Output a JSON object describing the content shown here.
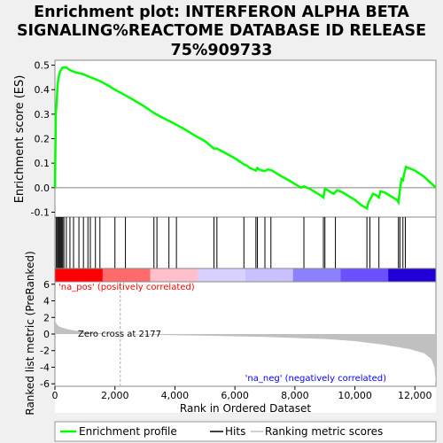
{
  "chart_data": {
    "type": "line",
    "title_lines": [
      "Enrichment plot: INTERFERON ALPHA BETA",
      "SIGNALING%REACTOME DATABASE ID RELEASE",
      "75%909733"
    ],
    "es_panel": {
      "ylabel": "Enrichment score (ES)",
      "ylim": [
        -0.12,
        0.52
      ],
      "yticks": [
        "0.5",
        "0.4",
        "0.3",
        "0.2",
        "0.1",
        "0.0",
        "-0.1"
      ],
      "ytick_values": [
        0.5,
        0.4,
        0.3,
        0.2,
        0.1,
        0.0,
        -0.1
      ],
      "line_color": "#00ff00",
      "series": [
        {
          "name": "Enrichment profile",
          "x": [
            0,
            30,
            60,
            90,
            120,
            160,
            200,
            250,
            300,
            380,
            500,
            700,
            900,
            1100,
            1300,
            1500,
            1800,
            2000,
            2300,
            2600,
            3000,
            3300,
            3600,
            4000,
            4300,
            4700,
            5000,
            5300,
            5400,
            5700,
            6000,
            6300,
            6400,
            6500,
            6600,
            6700,
            6750,
            6800,
            6900,
            7000,
            7100,
            7200,
            7300,
            7500,
            7800,
            8000,
            8200,
            8300,
            8500,
            8700,
            8900,
            8950,
            9000,
            9100,
            9200,
            9300,
            9400,
            9600,
            9800,
            10000,
            10200,
            10400,
            10450,
            10500,
            10600,
            10700,
            10800,
            10850,
            11000,
            11200,
            11400,
            11450,
            11500,
            11550,
            11600,
            11650,
            11700,
            12000,
            12300,
            12700
          ],
          "y": [
            0.0,
            0.3,
            0.35,
            0.42,
            0.45,
            0.47,
            0.48,
            0.49,
            0.49,
            0.49,
            0.48,
            0.47,
            0.465,
            0.455,
            0.445,
            0.435,
            0.415,
            0.4,
            0.38,
            0.36,
            0.33,
            0.305,
            0.285,
            0.26,
            0.24,
            0.21,
            0.19,
            0.16,
            0.16,
            0.14,
            0.12,
            0.095,
            0.09,
            0.08,
            0.075,
            0.07,
            0.08,
            0.075,
            0.07,
            0.068,
            0.074,
            0.072,
            0.065,
            0.05,
            0.03,
            0.015,
            0.0,
            0.005,
            -0.005,
            -0.02,
            -0.035,
            -0.04,
            -0.005,
            -0.01,
            -0.02,
            -0.025,
            -0.01,
            -0.02,
            -0.035,
            -0.05,
            -0.07,
            -0.085,
            -0.06,
            -0.05,
            -0.025,
            -0.03,
            -0.04,
            -0.015,
            -0.02,
            -0.035,
            -0.05,
            -0.06,
            -0.01,
            0.035,
            0.03,
            0.06,
            0.085,
            0.07,
            0.045,
            0.0
          ]
        }
      ]
    },
    "hits_panel": {
      "hit_positions": [
        40,
        80,
        110,
        140,
        170,
        200,
        230,
        260,
        300,
        380,
        500,
        620,
        800,
        950,
        1100,
        1180,
        1350,
        1500,
        2000,
        2350,
        3300,
        3400,
        3800,
        4050,
        5300,
        5400,
        6300,
        6700,
        6750,
        7000,
        7200,
        8300,
        8950,
        9000,
        9350,
        10400,
        10500,
        10800,
        11450,
        11500,
        11600,
        11680
      ],
      "band_colors": [
        "#ff0000",
        "#ff6a6a",
        "#ffc0cb",
        "#d8d0ff",
        "#c8c0ff",
        "#8c80ff",
        "#6a50ff",
        "#2000d8"
      ]
    },
    "metric_panel": {
      "ylabel": "Ranked list metric (PreRanked)",
      "ylim": [
        -6.3,
        6.3
      ],
      "yticks": [
        "6",
        "4",
        "2",
        "0",
        "-2",
        "-4",
        "-6"
      ],
      "ytick_values": [
        6,
        4,
        2,
        0,
        -2,
        -4,
        -6
      ],
      "zero_cross_label": "Zero cross at 2177",
      "zero_cross": 2177,
      "pos_label": "'na_pos' (positively correlated)",
      "neg_label": "'na_neg' (negatively correlated)",
      "profile_x": [
        0,
        30,
        80,
        150,
        250,
        400,
        600,
        900,
        1300,
        1800,
        2177,
        3000,
        5000,
        7000,
        9000,
        10000,
        11000,
        11800,
        12300,
        12550,
        12650,
        12700
      ],
      "profile_y": [
        2.0,
        1.4,
        1.1,
        0.9,
        0.75,
        0.6,
        0.45,
        0.3,
        0.15,
        0.05,
        0.0,
        -0.08,
        -0.2,
        -0.35,
        -0.6,
        -0.85,
        -1.3,
        -1.8,
        -2.3,
        -3.0,
        -4.0,
        -6.0
      ]
    },
    "xlabel": "Rank in Ordered Dataset",
    "xlim": [
      0,
      12700
    ],
    "xticks": [
      "0",
      "2,000",
      "4,000",
      "6,000",
      "8,000",
      "10,000",
      "12,000"
    ],
    "xtick_values": [
      0,
      2000,
      4000,
      6000,
      8000,
      10000,
      12000
    ],
    "legend": [
      {
        "label": "Enrichment profile",
        "color": "#00ff00"
      },
      {
        "label": "Hits",
        "color": "#000000"
      },
      {
        "label": "Ranking metric scores",
        "color": "#c0c0c0"
      }
    ],
    "legend_placement": "bottom"
  }
}
